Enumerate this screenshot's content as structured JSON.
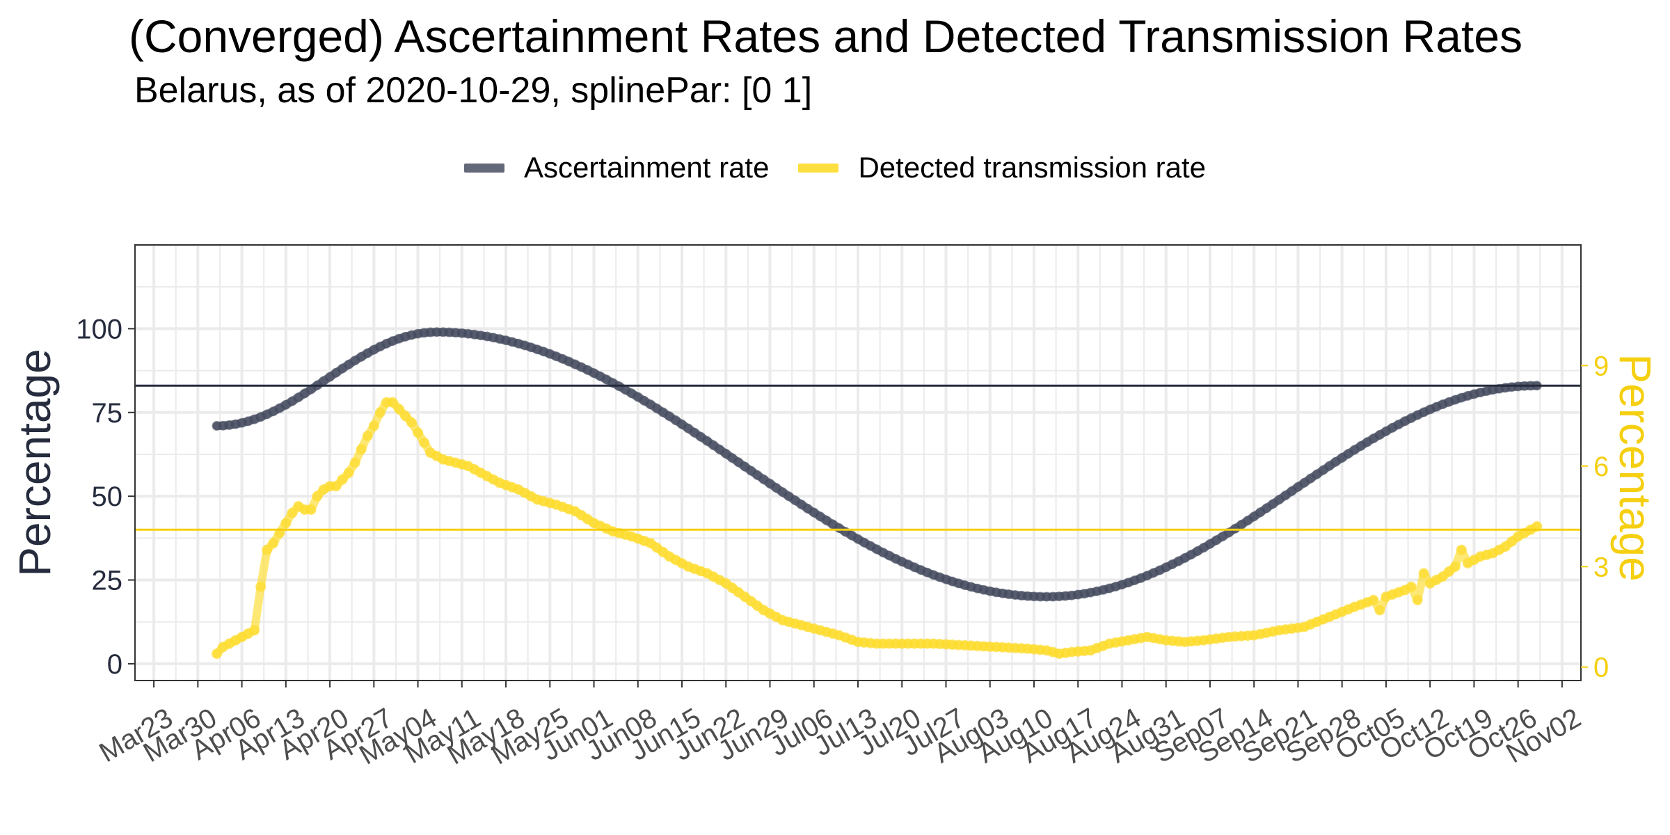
{
  "title": "(Converged) Ascertainment Rates and Detected Transmission Rates",
  "subtitle": "Belarus, as of 2020-10-29, splinePar: [0 1]",
  "colors": {
    "ascertainment": "#3d4357",
    "transmission": "#fddb2b",
    "left_axis": "#262c3e",
    "right_axis": "#f5cf10",
    "grid": "#ebebeb"
  },
  "chart_data": {
    "type": "line",
    "x_type": "date",
    "x_range": [
      "2020-03-20",
      "2020-11-05"
    ],
    "x_tick_labels": [
      "Mar23",
      "Mar30",
      "Apr06",
      "Apr13",
      "Apr20",
      "Apr27",
      "May04",
      "May11",
      "May18",
      "May25",
      "Jun01",
      "Jun08",
      "Jun15",
      "Jun22",
      "Jun29",
      "Jul06",
      "Jul13",
      "Jul20",
      "Jul27",
      "Aug03",
      "Aug10",
      "Aug17",
      "Aug24",
      "Aug31",
      "Sep07",
      "Sep14",
      "Sep21",
      "Sep28",
      "Oct05",
      "Oct12",
      "Oct19",
      "Oct26",
      "Nov02"
    ],
    "x_tick_dates": [
      "2020-03-23",
      "2020-03-30",
      "2020-04-06",
      "2020-04-13",
      "2020-04-20",
      "2020-04-27",
      "2020-05-04",
      "2020-05-11",
      "2020-05-18",
      "2020-05-25",
      "2020-06-01",
      "2020-06-08",
      "2020-06-15",
      "2020-06-22",
      "2020-06-29",
      "2020-07-06",
      "2020-07-13",
      "2020-07-20",
      "2020-07-27",
      "2020-08-03",
      "2020-08-10",
      "2020-08-17",
      "2020-08-24",
      "2020-08-31",
      "2020-09-07",
      "2020-09-14",
      "2020-09-21",
      "2020-09-28",
      "2020-10-05",
      "2020-10-12",
      "2020-10-19",
      "2020-10-26",
      "2020-11-02"
    ],
    "y_left": {
      "label": "Percentage",
      "range": [
        -5,
        125
      ],
      "ticks": [
        0,
        25,
        50,
        75,
        100
      ]
    },
    "y_right": {
      "label": "Percentage",
      "range": [
        -0.4,
        12.6
      ],
      "ticks": [
        0,
        3,
        6,
        9
      ]
    },
    "grid": true,
    "legend_position": "top",
    "series": [
      {
        "name": "Ascertainment rate",
        "axis": "left",
        "x_start": "2020-04-02",
        "x_end": "2020-10-29",
        "curve": [
          [
            "2020-04-02",
            71
          ],
          [
            "2020-05-07",
            99
          ],
          [
            "2020-08-12",
            20
          ],
          [
            "2020-10-29",
            83
          ]
        ],
        "reference_line": 83
      },
      {
        "name": "Detected transmission rate",
        "axis": "right",
        "reference_line": 4.1,
        "points": [
          [
            "2020-04-02",
            0.4
          ],
          [
            "2020-04-03",
            0.6
          ],
          [
            "2020-04-04",
            0.7
          ],
          [
            "2020-04-05",
            0.8
          ],
          [
            "2020-04-06",
            0.9
          ],
          [
            "2020-04-07",
            1.0
          ],
          [
            "2020-04-08",
            1.1
          ],
          [
            "2020-04-09",
            2.4
          ],
          [
            "2020-04-10",
            3.5
          ],
          [
            "2020-04-11",
            3.7
          ],
          [
            "2020-04-12",
            4.0
          ],
          [
            "2020-04-13",
            4.3
          ],
          [
            "2020-04-14",
            4.6
          ],
          [
            "2020-04-15",
            4.8
          ],
          [
            "2020-04-16",
            4.7
          ],
          [
            "2020-04-17",
            4.7
          ],
          [
            "2020-04-18",
            5.1
          ],
          [
            "2020-04-19",
            5.3
          ],
          [
            "2020-04-20",
            5.4
          ],
          [
            "2020-04-21",
            5.4
          ],
          [
            "2020-04-22",
            5.6
          ],
          [
            "2020-04-23",
            5.8
          ],
          [
            "2020-04-24",
            6.1
          ],
          [
            "2020-04-25",
            6.5
          ],
          [
            "2020-04-26",
            6.9
          ],
          [
            "2020-04-27",
            7.2
          ],
          [
            "2020-04-28",
            7.6
          ],
          [
            "2020-04-29",
            7.9
          ],
          [
            "2020-04-30",
            7.9
          ],
          [
            "2020-05-01",
            7.7
          ],
          [
            "2020-05-02",
            7.5
          ],
          [
            "2020-05-03",
            7.3
          ],
          [
            "2020-05-04",
            7.0
          ],
          [
            "2020-05-05",
            6.7
          ],
          [
            "2020-05-06",
            6.4
          ],
          [
            "2020-05-07",
            6.3
          ],
          [
            "2020-05-08",
            6.2
          ],
          [
            "2020-05-09",
            6.15
          ],
          [
            "2020-05-10",
            6.1
          ],
          [
            "2020-05-12",
            6.0
          ],
          [
            "2020-05-14",
            5.8
          ],
          [
            "2020-05-17",
            5.5
          ],
          [
            "2020-05-20",
            5.3
          ],
          [
            "2020-05-23",
            5.0
          ],
          [
            "2020-05-26",
            4.85
          ],
          [
            "2020-05-29",
            4.65
          ],
          [
            "2020-06-01",
            4.3
          ],
          [
            "2020-06-04",
            4.05
          ],
          [
            "2020-06-07",
            3.9
          ],
          [
            "2020-06-10",
            3.7
          ],
          [
            "2020-06-13",
            3.3
          ],
          [
            "2020-06-16",
            3.0
          ],
          [
            "2020-06-19",
            2.8
          ],
          [
            "2020-06-22",
            2.5
          ],
          [
            "2020-06-25",
            2.1
          ],
          [
            "2020-06-28",
            1.7
          ],
          [
            "2020-07-01",
            1.4
          ],
          [
            "2020-07-04",
            1.25
          ],
          [
            "2020-07-07",
            1.1
          ],
          [
            "2020-07-10",
            0.95
          ],
          [
            "2020-07-13",
            0.75
          ],
          [
            "2020-07-16",
            0.7
          ],
          [
            "2020-07-20",
            0.7
          ],
          [
            "2020-07-25",
            0.7
          ],
          [
            "2020-07-30",
            0.65
          ],
          [
            "2020-08-04",
            0.6
          ],
          [
            "2020-08-09",
            0.55
          ],
          [
            "2020-08-12",
            0.5
          ],
          [
            "2020-08-14",
            0.4
          ],
          [
            "2020-08-16",
            0.45
          ],
          [
            "2020-08-19",
            0.5
          ],
          [
            "2020-08-22",
            0.7
          ],
          [
            "2020-08-25",
            0.8
          ],
          [
            "2020-08-28",
            0.9
          ],
          [
            "2020-08-31",
            0.8
          ],
          [
            "2020-09-03",
            0.75
          ],
          [
            "2020-09-06",
            0.8
          ],
          [
            "2020-09-10",
            0.9
          ],
          [
            "2020-09-14",
            0.95
          ],
          [
            "2020-09-18",
            1.1
          ],
          [
            "2020-09-22",
            1.2
          ],
          [
            "2020-09-26",
            1.5
          ],
          [
            "2020-09-30",
            1.8
          ],
          [
            "2020-10-03",
            2.0
          ],
          [
            "2020-10-04",
            1.7
          ],
          [
            "2020-10-05",
            2.1
          ],
          [
            "2020-10-08",
            2.3
          ],
          [
            "2020-10-09",
            2.4
          ],
          [
            "2020-10-10",
            2.0
          ],
          [
            "2020-10-11",
            2.8
          ],
          [
            "2020-10-12",
            2.5
          ],
          [
            "2020-10-14",
            2.7
          ],
          [
            "2020-10-16",
            3.0
          ],
          [
            "2020-10-17",
            3.5
          ],
          [
            "2020-10-18",
            3.1
          ],
          [
            "2020-10-20",
            3.3
          ],
          [
            "2020-10-22",
            3.4
          ],
          [
            "2020-10-24",
            3.6
          ],
          [
            "2020-10-26",
            3.9
          ],
          [
            "2020-10-28",
            4.1
          ],
          [
            "2020-10-29",
            4.2
          ]
        ]
      }
    ]
  }
}
